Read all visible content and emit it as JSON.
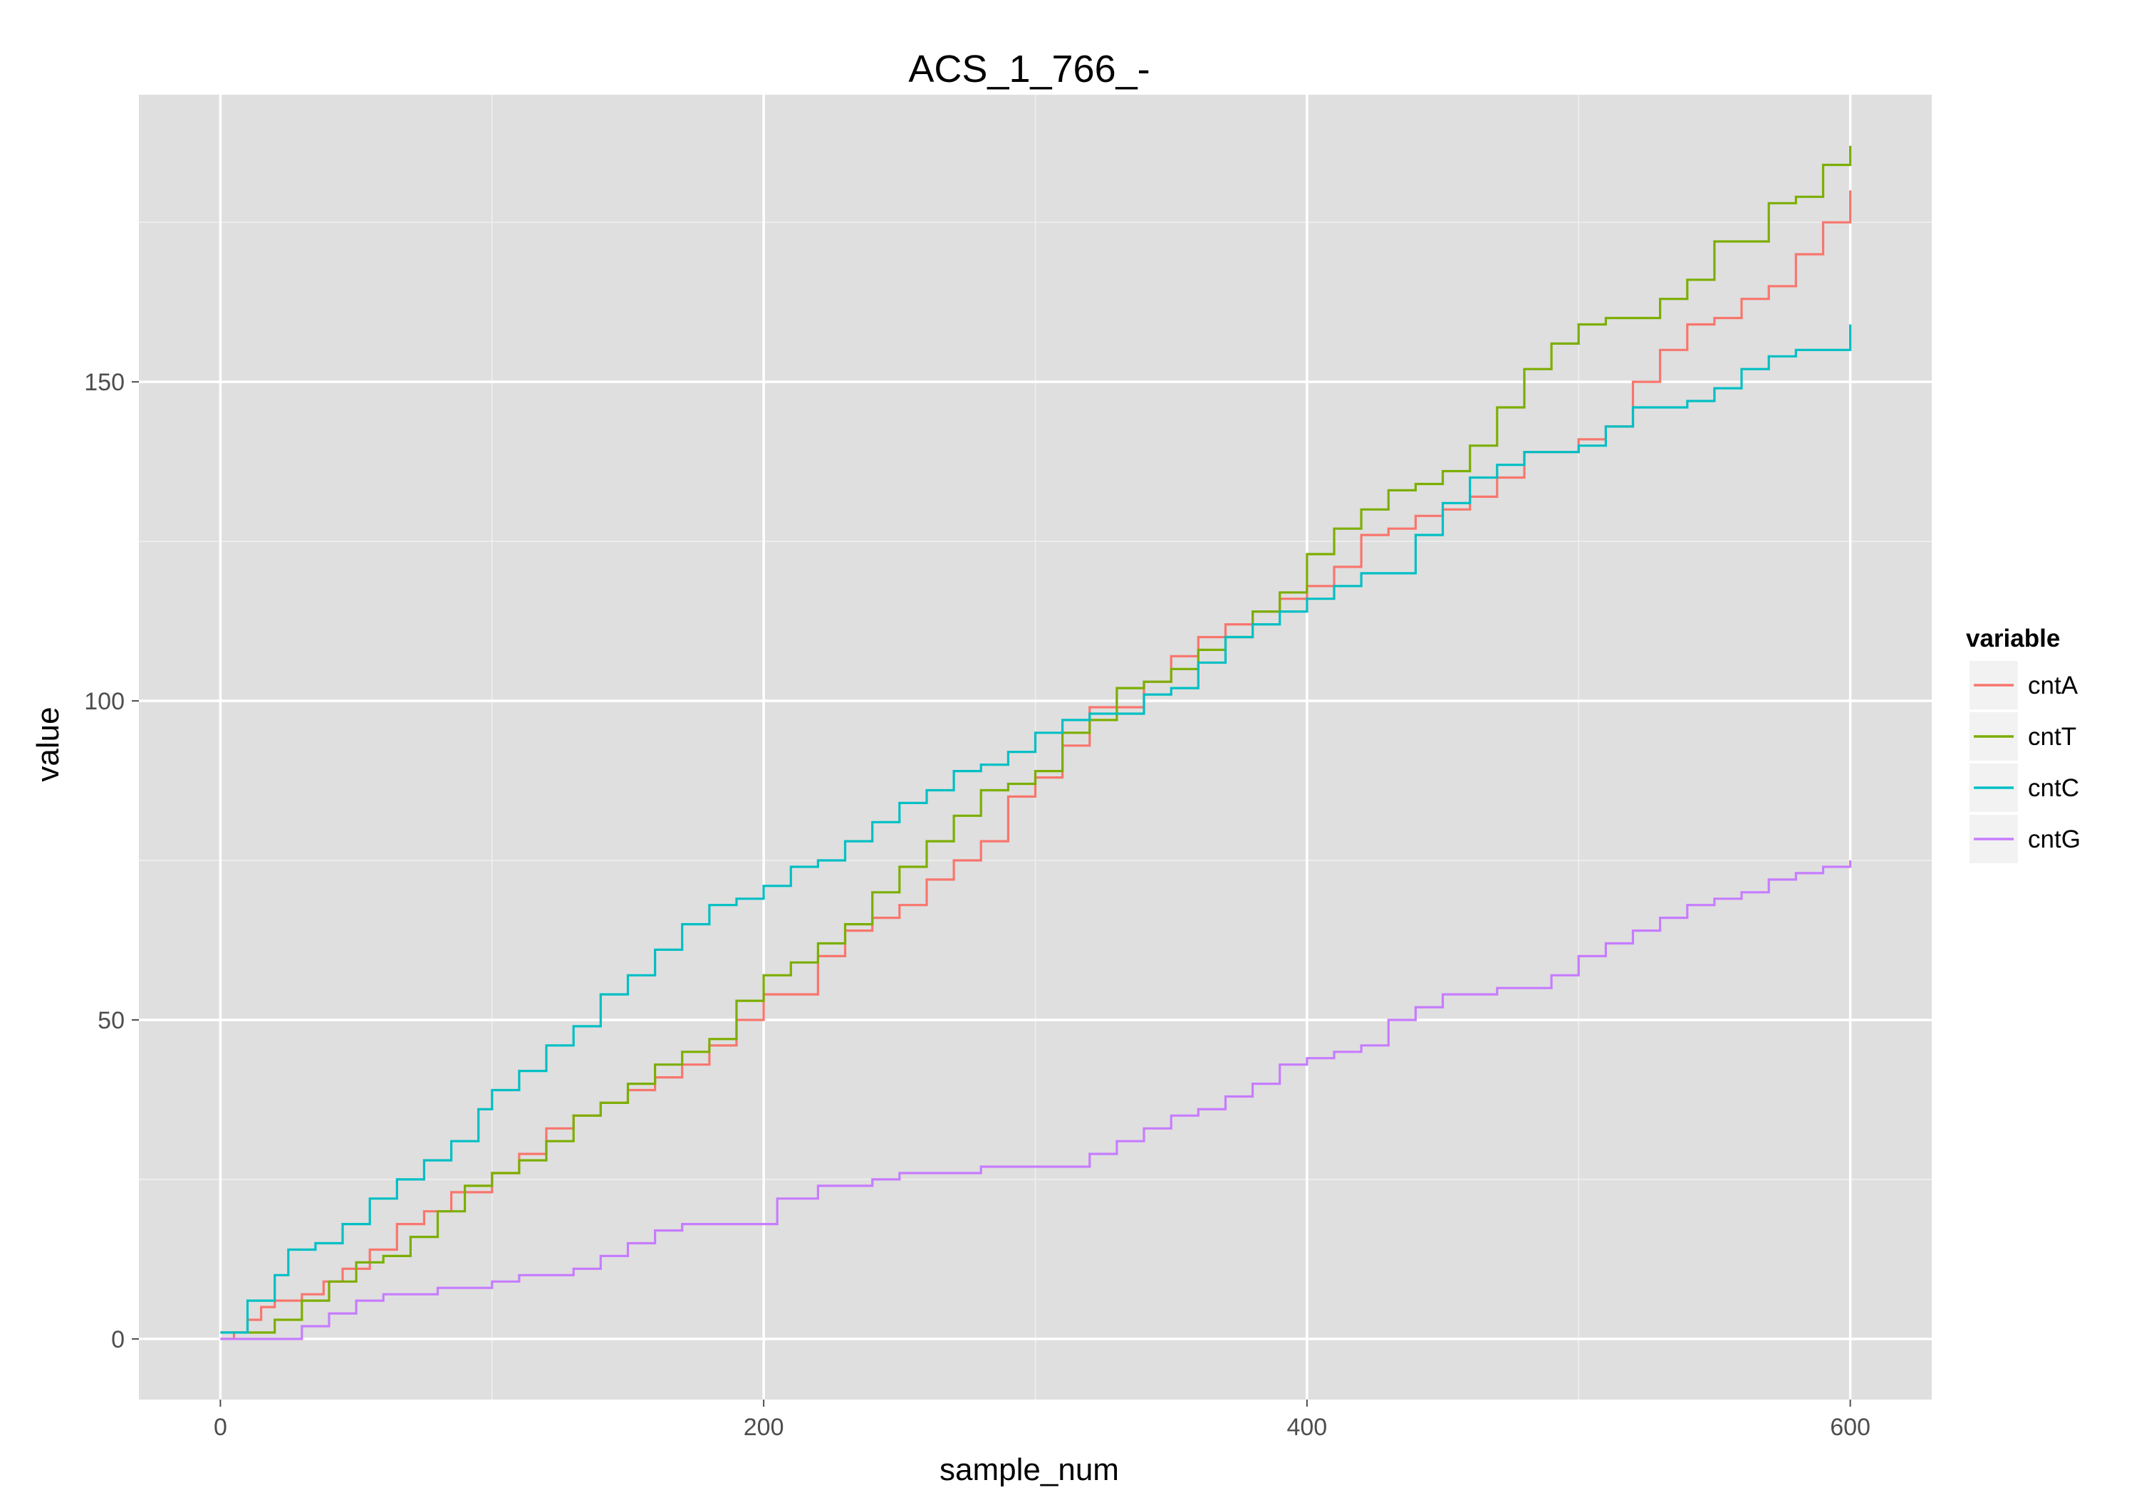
{
  "chart_data": {
    "type": "line",
    "title": "ACS_1_766_-",
    "xlabel": "sample_num",
    "ylabel": "value",
    "xlim": [
      -30,
      630
    ],
    "ylim": [
      -9.5,
      195
    ],
    "x_ticks": [
      0,
      200,
      400,
      600
    ],
    "x_tick_labels": [
      "0",
      "200",
      "400",
      "600"
    ],
    "y_ticks": [
      0,
      50,
      100,
      150
    ],
    "y_tick_labels": [
      "0",
      "50",
      "100",
      "150"
    ],
    "grid": true,
    "background": "#dfdfdf",
    "legend": {
      "title": "variable",
      "position": "right"
    },
    "step": true,
    "series": [
      {
        "name": "cntA",
        "color": "#f8766d",
        "points": [
          [
            0,
            0
          ],
          [
            5,
            1
          ],
          [
            10,
            3
          ],
          [
            15,
            5
          ],
          [
            20,
            6
          ],
          [
            30,
            7
          ],
          [
            38,
            9
          ],
          [
            45,
            11
          ],
          [
            55,
            14
          ],
          [
            65,
            18
          ],
          [
            75,
            20
          ],
          [
            85,
            23
          ],
          [
            100,
            26
          ],
          [
            110,
            29
          ],
          [
            120,
            33
          ],
          [
            130,
            35
          ],
          [
            140,
            37
          ],
          [
            150,
            39
          ],
          [
            160,
            41
          ],
          [
            170,
            43
          ],
          [
            180,
            46
          ],
          [
            190,
            50
          ],
          [
            200,
            54
          ],
          [
            210,
            54
          ],
          [
            220,
            60
          ],
          [
            230,
            64
          ],
          [
            240,
            66
          ],
          [
            250,
            68
          ],
          [
            260,
            72
          ],
          [
            270,
            75
          ],
          [
            280,
            78
          ],
          [
            290,
            85
          ],
          [
            300,
            88
          ],
          [
            310,
            93
          ],
          [
            320,
            99
          ],
          [
            330,
            99
          ],
          [
            340,
            103
          ],
          [
            350,
            107
          ],
          [
            360,
            110
          ],
          [
            370,
            112
          ],
          [
            380,
            114
          ],
          [
            390,
            116
          ],
          [
            400,
            118
          ],
          [
            410,
            121
          ],
          [
            420,
            126
          ],
          [
            430,
            127
          ],
          [
            440,
            129
          ],
          [
            450,
            130
          ],
          [
            460,
            132
          ],
          [
            470,
            135
          ],
          [
            480,
            139
          ],
          [
            490,
            139
          ],
          [
            500,
            141
          ],
          [
            510,
            143
          ],
          [
            520,
            150
          ],
          [
            530,
            155
          ],
          [
            540,
            159
          ],
          [
            550,
            160
          ],
          [
            560,
            163
          ],
          [
            570,
            165
          ],
          [
            580,
            170
          ],
          [
            590,
            175
          ],
          [
            600,
            180
          ]
        ]
      },
      {
        "name": "cntT",
        "color": "#7cae00",
        "points": [
          [
            0,
            1
          ],
          [
            10,
            1
          ],
          [
            20,
            3
          ],
          [
            30,
            6
          ],
          [
            40,
            9
          ],
          [
            50,
            12
          ],
          [
            60,
            13
          ],
          [
            70,
            16
          ],
          [
            80,
            20
          ],
          [
            90,
            24
          ],
          [
            100,
            26
          ],
          [
            110,
            28
          ],
          [
            120,
            31
          ],
          [
            130,
            35
          ],
          [
            140,
            37
          ],
          [
            150,
            40
          ],
          [
            160,
            43
          ],
          [
            170,
            45
          ],
          [
            180,
            47
          ],
          [
            190,
            53
          ],
          [
            200,
            57
          ],
          [
            210,
            59
          ],
          [
            220,
            62
          ],
          [
            230,
            65
          ],
          [
            240,
            70
          ],
          [
            250,
            74
          ],
          [
            260,
            78
          ],
          [
            270,
            82
          ],
          [
            280,
            86
          ],
          [
            290,
            87
          ],
          [
            300,
            89
          ],
          [
            310,
            95
          ],
          [
            320,
            97
          ],
          [
            330,
            102
          ],
          [
            340,
            103
          ],
          [
            350,
            105
          ],
          [
            360,
            108
          ],
          [
            370,
            110
          ],
          [
            380,
            114
          ],
          [
            390,
            117
          ],
          [
            400,
            123
          ],
          [
            410,
            127
          ],
          [
            420,
            130
          ],
          [
            430,
            133
          ],
          [
            440,
            134
          ],
          [
            450,
            136
          ],
          [
            460,
            140
          ],
          [
            470,
            146
          ],
          [
            480,
            152
          ],
          [
            490,
            156
          ],
          [
            500,
            159
          ],
          [
            510,
            160
          ],
          [
            520,
            160
          ],
          [
            530,
            163
          ],
          [
            540,
            166
          ],
          [
            550,
            172
          ],
          [
            560,
            172
          ],
          [
            570,
            178
          ],
          [
            580,
            179
          ],
          [
            590,
            184
          ],
          [
            600,
            187
          ]
        ]
      },
      {
        "name": "cntC",
        "color": "#00bfc4",
        "points": [
          [
            0,
            1
          ],
          [
            10,
            6
          ],
          [
            20,
            10
          ],
          [
            25,
            14
          ],
          [
            35,
            15
          ],
          [
            45,
            18
          ],
          [
            55,
            22
          ],
          [
            65,
            25
          ],
          [
            75,
            28
          ],
          [
            85,
            31
          ],
          [
            95,
            36
          ],
          [
            100,
            39
          ],
          [
            110,
            42
          ],
          [
            120,
            46
          ],
          [
            130,
            49
          ],
          [
            140,
            54
          ],
          [
            150,
            57
          ],
          [
            160,
            61
          ],
          [
            170,
            65
          ],
          [
            180,
            68
          ],
          [
            190,
            69
          ],
          [
            200,
            71
          ],
          [
            210,
            74
          ],
          [
            220,
            75
          ],
          [
            230,
            78
          ],
          [
            240,
            81
          ],
          [
            250,
            84
          ],
          [
            260,
            86
          ],
          [
            270,
            89
          ],
          [
            280,
            90
          ],
          [
            290,
            92
          ],
          [
            300,
            95
          ],
          [
            310,
            97
          ],
          [
            320,
            98
          ],
          [
            330,
            98
          ],
          [
            340,
            101
          ],
          [
            350,
            102
          ],
          [
            360,
            106
          ],
          [
            370,
            110
          ],
          [
            380,
            112
          ],
          [
            390,
            114
          ],
          [
            400,
            116
          ],
          [
            410,
            118
          ],
          [
            420,
            120
          ],
          [
            430,
            120
          ],
          [
            440,
            126
          ],
          [
            450,
            131
          ],
          [
            460,
            135
          ],
          [
            470,
            137
          ],
          [
            480,
            139
          ],
          [
            490,
            139
          ],
          [
            500,
            140
          ],
          [
            510,
            143
          ],
          [
            520,
            146
          ],
          [
            530,
            146
          ],
          [
            540,
            147
          ],
          [
            550,
            149
          ],
          [
            560,
            152
          ],
          [
            570,
            154
          ],
          [
            580,
            155
          ],
          [
            590,
            155
          ],
          [
            600,
            159
          ]
        ]
      },
      {
        "name": "cntG",
        "color": "#c77cff",
        "points": [
          [
            0,
            0
          ],
          [
            20,
            0
          ],
          [
            30,
            2
          ],
          [
            40,
            4
          ],
          [
            50,
            6
          ],
          [
            60,
            7
          ],
          [
            80,
            8
          ],
          [
            100,
            9
          ],
          [
            110,
            10
          ],
          [
            130,
            11
          ],
          [
            140,
            13
          ],
          [
            150,
            15
          ],
          [
            160,
            17
          ],
          [
            170,
            18
          ],
          [
            200,
            18
          ],
          [
            205,
            22
          ],
          [
            220,
            24
          ],
          [
            240,
            25
          ],
          [
            250,
            26
          ],
          [
            270,
            26
          ],
          [
            280,
            27
          ],
          [
            310,
            27
          ],
          [
            320,
            29
          ],
          [
            330,
            31
          ],
          [
            340,
            33
          ],
          [
            350,
            35
          ],
          [
            360,
            36
          ],
          [
            370,
            38
          ],
          [
            380,
            40
          ],
          [
            390,
            43
          ],
          [
            400,
            44
          ],
          [
            410,
            45
          ],
          [
            420,
            46
          ],
          [
            430,
            50
          ],
          [
            440,
            52
          ],
          [
            450,
            54
          ],
          [
            460,
            54
          ],
          [
            470,
            55
          ],
          [
            480,
            55
          ],
          [
            490,
            57
          ],
          [
            500,
            60
          ],
          [
            510,
            62
          ],
          [
            520,
            64
          ],
          [
            530,
            66
          ],
          [
            540,
            68
          ],
          [
            550,
            69
          ],
          [
            560,
            70
          ],
          [
            570,
            72
          ],
          [
            580,
            73
          ],
          [
            590,
            74
          ],
          [
            600,
            75
          ]
        ]
      }
    ]
  }
}
